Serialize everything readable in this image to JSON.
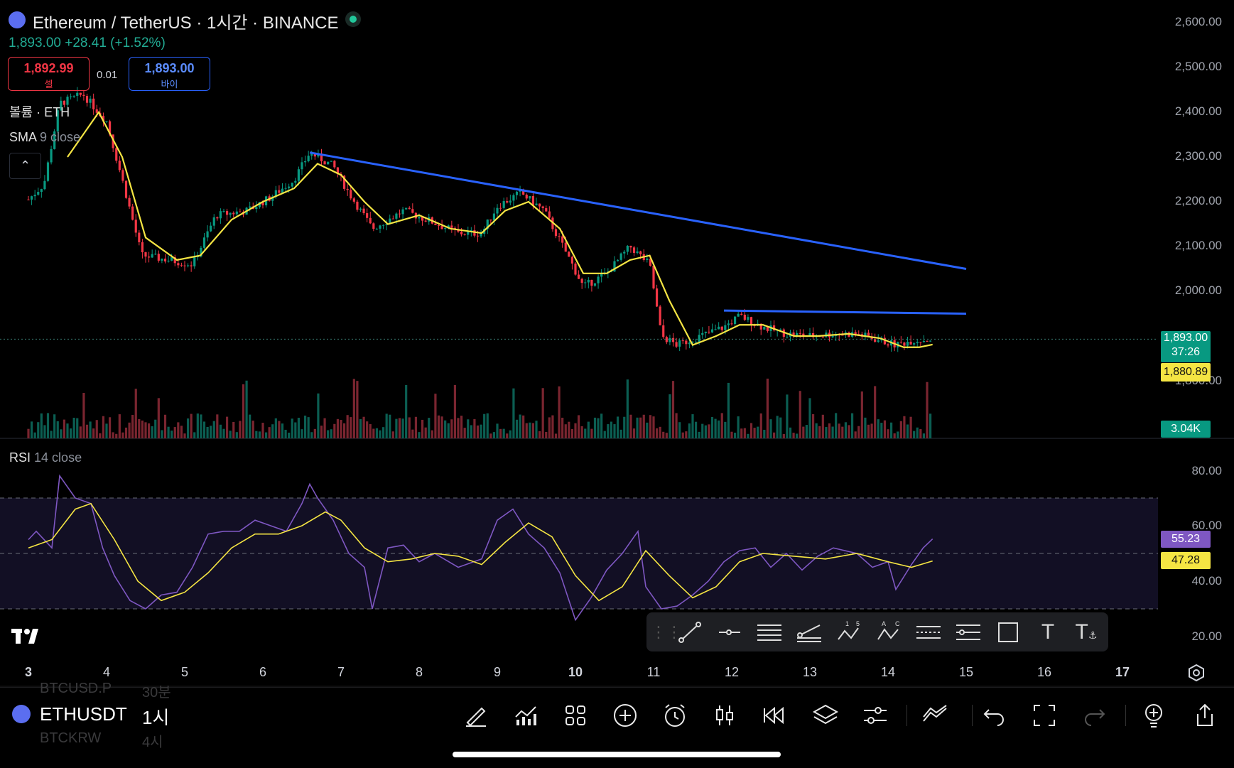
{
  "header": {
    "title": "Ethereum / TetherUS · 1시간 · BINANCE",
    "price_line": "1,893.00  +28.41 (+1.52%)",
    "sell_price": "1,892.99",
    "sell_label": "셀",
    "spread": "0.01",
    "buy_price": "1,893.00",
    "buy_label": "바이"
  },
  "indicators": {
    "volume_label": "볼륨 · ETH",
    "sma_name": "SMA",
    "sma_params": "9 close",
    "rsi_name": "RSI",
    "rsi_params": "14 close"
  },
  "price_axis": [
    "2,600.00",
    "2,500.00",
    "2,400.00",
    "2,300.00",
    "2,200.00",
    "2,100.00",
    "2,000.00",
    "1,800.00"
  ],
  "rsi_axis": [
    "80.00",
    "60.00",
    "40.00",
    "20.00"
  ],
  "tags": {
    "last_price": "1,893.00",
    "countdown": "37:26",
    "sma_value": "1,880.89",
    "volume_value": "3.04K",
    "rsi_value": "55.23",
    "rsi_ma_value": "47.28"
  },
  "time_axis": [
    {
      "label": "3",
      "bold": true
    },
    {
      "label": "4",
      "bold": false
    },
    {
      "label": "5",
      "bold": false
    },
    {
      "label": "6",
      "bold": false
    },
    {
      "label": "7",
      "bold": false
    },
    {
      "label": "8",
      "bold": false
    },
    {
      "label": "9",
      "bold": false
    },
    {
      "label": "10",
      "bold": true
    },
    {
      "label": "11",
      "bold": false
    },
    {
      "label": "12",
      "bold": false
    },
    {
      "label": "13",
      "bold": false
    },
    {
      "label": "14",
      "bold": false
    },
    {
      "label": "15",
      "bold": false
    },
    {
      "label": "16",
      "bold": false
    },
    {
      "label": "17",
      "bold": true
    }
  ],
  "drawing_tools": [
    "drag-handle-icon",
    "trend-line-icon",
    "horizontal-ray-icon",
    "parallel-channel-icon",
    "fib-retracement-icon",
    "xabcd-pattern-icon",
    "abcd-pattern-icon",
    "date-range-icon",
    "price-range-icon",
    "rectangle-icon",
    "text-icon",
    "anchored-text-icon"
  ],
  "bottom": {
    "symbol": "ETHUSDT",
    "timeframe": "1시",
    "ghost_prev_symbol": "BTCUSD.P",
    "ghost_prev_tf": "30분",
    "ghost_next_symbol": "BTCKRW",
    "ghost_next_tf": "4시"
  },
  "colors": {
    "up": "#089981",
    "down": "#f23645",
    "sma": "#f5e543",
    "trendline": "#2962ff",
    "rsi": "#7e57c2",
    "rsi_ma": "#f5e543"
  },
  "chart_data": {
    "type": "candlestick",
    "symbol": "ETHUSDT",
    "interval": "1h",
    "x_range_days": [
      3,
      17
    ],
    "y_range": [
      1800,
      2600
    ],
    "last_price": 1893.0,
    "change": 28.41,
    "change_pct": 1.52,
    "sma9_last": 1880.89,
    "volume_last": "3.04K",
    "close_path": [
      {
        "day": 3.0,
        "price": 2205
      },
      {
        "day": 3.2,
        "price": 2240
      },
      {
        "day": 3.4,
        "price": 2420
      },
      {
        "day": 3.7,
        "price": 2440
      },
      {
        "day": 4.0,
        "price": 2380
      },
      {
        "day": 4.2,
        "price": 2250
      },
      {
        "day": 4.45,
        "price": 2080
      },
      {
        "day": 4.8,
        "price": 2070
      },
      {
        "day": 5.1,
        "price": 2060
      },
      {
        "day": 5.4,
        "price": 2170
      },
      {
        "day": 5.8,
        "price": 2180
      },
      {
        "day": 6.1,
        "price": 2210
      },
      {
        "day": 6.4,
        "price": 2250
      },
      {
        "day": 6.6,
        "price": 2310
      },
      {
        "day": 6.9,
        "price": 2280
      },
      {
        "day": 7.1,
        "price": 2220
      },
      {
        "day": 7.4,
        "price": 2140
      },
      {
        "day": 7.8,
        "price": 2180
      },
      {
        "day": 8.1,
        "price": 2160
      },
      {
        "day": 8.5,
        "price": 2130
      },
      {
        "day": 8.8,
        "price": 2130
      },
      {
        "day": 9.0,
        "price": 2190
      },
      {
        "day": 9.3,
        "price": 2220
      },
      {
        "day": 9.6,
        "price": 2180
      },
      {
        "day": 9.9,
        "price": 2080
      },
      {
        "day": 10.1,
        "price": 2010
      },
      {
        "day": 10.4,
        "price": 2040
      },
      {
        "day": 10.7,
        "price": 2100
      },
      {
        "day": 10.95,
        "price": 2060
      },
      {
        "day": 11.1,
        "price": 1900
      },
      {
        "day": 11.3,
        "price": 1880
      },
      {
        "day": 11.6,
        "price": 1900
      },
      {
        "day": 11.9,
        "price": 1920
      },
      {
        "day": 12.1,
        "price": 1945
      },
      {
        "day": 12.4,
        "price": 1920
      },
      {
        "day": 12.7,
        "price": 1905
      },
      {
        "day": 13.0,
        "price": 1900
      },
      {
        "day": 13.3,
        "price": 1905
      },
      {
        "day": 13.6,
        "price": 1905
      },
      {
        "day": 13.9,
        "price": 1890
      },
      {
        "day": 14.1,
        "price": 1880
      },
      {
        "day": 14.3,
        "price": 1890
      },
      {
        "day": 14.57,
        "price": 1893
      }
    ],
    "sma_path": [
      {
        "day": 3.5,
        "price": 2300
      },
      {
        "day": 3.9,
        "price": 2400
      },
      {
        "day": 4.2,
        "price": 2300
      },
      {
        "day": 4.5,
        "price": 2120
      },
      {
        "day": 4.9,
        "price": 2070
      },
      {
        "day": 5.2,
        "price": 2080
      },
      {
        "day": 5.6,
        "price": 2160
      },
      {
        "day": 6.0,
        "price": 2200
      },
      {
        "day": 6.4,
        "price": 2230
      },
      {
        "day": 6.7,
        "price": 2285
      },
      {
        "day": 7.0,
        "price": 2260
      },
      {
        "day": 7.3,
        "price": 2200
      },
      {
        "day": 7.6,
        "price": 2150
      },
      {
        "day": 8.0,
        "price": 2170
      },
      {
        "day": 8.4,
        "price": 2140
      },
      {
        "day": 8.8,
        "price": 2130
      },
      {
        "day": 9.1,
        "price": 2180
      },
      {
        "day": 9.4,
        "price": 2200
      },
      {
        "day": 9.8,
        "price": 2140
      },
      {
        "day": 10.1,
        "price": 2040
      },
      {
        "day": 10.4,
        "price": 2040
      },
      {
        "day": 10.7,
        "price": 2070
      },
      {
        "day": 10.95,
        "price": 2080
      },
      {
        "day": 11.2,
        "price": 1980
      },
      {
        "day": 11.5,
        "price": 1880
      },
      {
        "day": 11.8,
        "price": 1900
      },
      {
        "day": 12.1,
        "price": 1925
      },
      {
        "day": 12.4,
        "price": 1925
      },
      {
        "day": 12.8,
        "price": 1900
      },
      {
        "day": 13.1,
        "price": 1900
      },
      {
        "day": 13.5,
        "price": 1905
      },
      {
        "day": 13.9,
        "price": 1895
      },
      {
        "day": 14.2,
        "price": 1875
      },
      {
        "day": 14.4,
        "price": 1875
      },
      {
        "day": 14.57,
        "price": 1881
      }
    ],
    "trendlines": [
      {
        "from": {
          "day": 6.6,
          "price": 2310
        },
        "to": {
          "day": 15.0,
          "price": 2050
        }
      },
      {
        "from": {
          "day": 11.9,
          "price": 1957
        },
        "to": {
          "day": 15.0,
          "price": 1950
        }
      }
    ],
    "rsi": {
      "y_range": [
        20,
        80
      ],
      "upper_band": 70,
      "lower_band": 30,
      "mid": 50,
      "last_rsi": 55.23,
      "last_ma": 47.28,
      "rsi_path": [
        {
          "day": 3.0,
          "v": 55
        },
        {
          "day": 3.1,
          "v": 58
        },
        {
          "day": 3.3,
          "v": 52
        },
        {
          "day": 3.4,
          "v": 78
        },
        {
          "day": 3.6,
          "v": 70
        },
        {
          "day": 3.8,
          "v": 68
        },
        {
          "day": 3.95,
          "v": 52
        },
        {
          "day": 4.1,
          "v": 42
        },
        {
          "day": 4.3,
          "v": 33
        },
        {
          "day": 4.5,
          "v": 30
        },
        {
          "day": 4.7,
          "v": 35
        },
        {
          "day": 4.9,
          "v": 36
        },
        {
          "day": 5.1,
          "v": 45
        },
        {
          "day": 5.3,
          "v": 57
        },
        {
          "day": 5.5,
          "v": 58
        },
        {
          "day": 5.7,
          "v": 58
        },
        {
          "day": 5.9,
          "v": 62
        },
        {
          "day": 6.1,
          "v": 60
        },
        {
          "day": 6.3,
          "v": 58
        },
        {
          "day": 6.5,
          "v": 68
        },
        {
          "day": 6.6,
          "v": 75
        },
        {
          "day": 6.7,
          "v": 70
        },
        {
          "day": 6.9,
          "v": 62
        },
        {
          "day": 7.1,
          "v": 50
        },
        {
          "day": 7.3,
          "v": 45
        },
        {
          "day": 7.4,
          "v": 30
        },
        {
          "day": 7.6,
          "v": 52
        },
        {
          "day": 7.8,
          "v": 53
        },
        {
          "day": 8.0,
          "v": 47
        },
        {
          "day": 8.2,
          "v": 50
        },
        {
          "day": 8.5,
          "v": 45
        },
        {
          "day": 8.8,
          "v": 48
        },
        {
          "day": 9.0,
          "v": 62
        },
        {
          "day": 9.2,
          "v": 66
        },
        {
          "day": 9.4,
          "v": 57
        },
        {
          "day": 9.6,
          "v": 52
        },
        {
          "day": 9.8,
          "v": 43
        },
        {
          "day": 10.0,
          "v": 26
        },
        {
          "day": 10.2,
          "v": 34
        },
        {
          "day": 10.4,
          "v": 44
        },
        {
          "day": 10.6,
          "v": 50
        },
        {
          "day": 10.8,
          "v": 58
        },
        {
          "day": 10.9,
          "v": 38
        },
        {
          "day": 11.1,
          "v": 30
        },
        {
          "day": 11.3,
          "v": 31
        },
        {
          "day": 11.5,
          "v": 35
        },
        {
          "day": 11.7,
          "v": 40
        },
        {
          "day": 11.9,
          "v": 47
        },
        {
          "day": 12.1,
          "v": 51
        },
        {
          "day": 12.3,
          "v": 52
        },
        {
          "day": 12.5,
          "v": 45
        },
        {
          "day": 12.7,
          "v": 50
        },
        {
          "day": 12.9,
          "v": 44
        },
        {
          "day": 13.1,
          "v": 49
        },
        {
          "day": 13.3,
          "v": 52
        },
        {
          "day": 13.6,
          "v": 50
        },
        {
          "day": 13.8,
          "v": 45
        },
        {
          "day": 14.0,
          "v": 47
        },
        {
          "day": 14.1,
          "v": 37
        },
        {
          "day": 14.3,
          "v": 46
        },
        {
          "day": 14.45,
          "v": 52
        },
        {
          "day": 14.57,
          "v": 55.23
        }
      ],
      "ma_path": [
        {
          "day": 3.0,
          "v": 52
        },
        {
          "day": 3.3,
          "v": 55
        },
        {
          "day": 3.6,
          "v": 66
        },
        {
          "day": 3.8,
          "v": 68
        },
        {
          "day": 4.1,
          "v": 55
        },
        {
          "day": 4.4,
          "v": 40
        },
        {
          "day": 4.7,
          "v": 33
        },
        {
          "day": 5.0,
          "v": 36
        },
        {
          "day": 5.3,
          "v": 43
        },
        {
          "day": 5.6,
          "v": 52
        },
        {
          "day": 5.9,
          "v": 57
        },
        {
          "day": 6.2,
          "v": 57
        },
        {
          "day": 6.5,
          "v": 60
        },
        {
          "day": 6.8,
          "v": 65
        },
        {
          "day": 7.0,
          "v": 62
        },
        {
          "day": 7.3,
          "v": 52
        },
        {
          "day": 7.6,
          "v": 47
        },
        {
          "day": 7.9,
          "v": 48
        },
        {
          "day": 8.2,
          "v": 50
        },
        {
          "day": 8.5,
          "v": 49
        },
        {
          "day": 8.8,
          "v": 46
        },
        {
          "day": 9.1,
          "v": 54
        },
        {
          "day": 9.4,
          "v": 61
        },
        {
          "day": 9.7,
          "v": 56
        },
        {
          "day": 10.0,
          "v": 42
        },
        {
          "day": 10.3,
          "v": 33
        },
        {
          "day": 10.6,
          "v": 38
        },
        {
          "day": 10.9,
          "v": 51
        },
        {
          "day": 11.2,
          "v": 42
        },
        {
          "day": 11.5,
          "v": 34
        },
        {
          "day": 11.8,
          "v": 38
        },
        {
          "day": 12.1,
          "v": 47
        },
        {
          "day": 12.4,
          "v": 50
        },
        {
          "day": 12.8,
          "v": 49
        },
        {
          "day": 13.2,
          "v": 48
        },
        {
          "day": 13.6,
          "v": 50
        },
        {
          "day": 14.0,
          "v": 47
        },
        {
          "day": 14.3,
          "v": 45
        },
        {
          "day": 14.57,
          "v": 47.28
        }
      ]
    }
  }
}
